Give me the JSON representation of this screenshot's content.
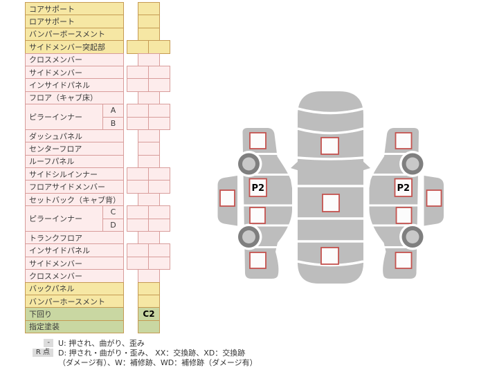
{
  "parts_table": {
    "rows": [
      {
        "label": "コアサポート",
        "theme": "yellow",
        "cells": "single"
      },
      {
        "label": "ロアサポート",
        "theme": "yellow",
        "cells": "single"
      },
      {
        "label": "バンパーボースメント",
        "theme": "yellow",
        "cells": "single"
      },
      {
        "label": "サイドメンバー突起部",
        "theme": "yellow",
        "cells": "double"
      },
      {
        "label": "クロスメンバー",
        "theme": "pink",
        "cells": "single"
      },
      {
        "label": "サイドメンバー",
        "theme": "pink",
        "cells": "double"
      },
      {
        "label": "インサイドパネル",
        "theme": "pink",
        "cells": "double"
      },
      {
        "label": "フロア（キャブ床）",
        "theme": "pink",
        "cells": "single"
      },
      {
        "label": "ピラーインナー",
        "theme": "pink",
        "cells": "double",
        "subs": [
          "A",
          "B"
        ]
      },
      {
        "label": "ダッシュパネル",
        "theme": "pink",
        "cells": "single"
      },
      {
        "label": "センターフロア",
        "theme": "pink",
        "cells": "single"
      },
      {
        "label": "ルーフパネル",
        "theme": "pink",
        "cells": "single"
      },
      {
        "label": "サイドシルインナー",
        "theme": "pink",
        "cells": "double"
      },
      {
        "label": "フロアサイドメンバー",
        "theme": "pink",
        "cells": "double"
      },
      {
        "label": "セットバック（キャブ背）",
        "theme": "pink",
        "cells": "single"
      },
      {
        "label": "ピラーインナー",
        "theme": "pink",
        "cells": "double",
        "subs": [
          "C",
          "D"
        ]
      },
      {
        "label": "トランクフロア",
        "theme": "pink",
        "cells": "single"
      },
      {
        "label": "インサイドパネル",
        "theme": "pink",
        "cells": "double"
      },
      {
        "label": "サイドメンバー",
        "theme": "pink",
        "cells": "double"
      },
      {
        "label": "クロスメンバー",
        "theme": "pink",
        "cells": "single"
      },
      {
        "label": "バックパネル",
        "theme": "yellow",
        "cells": "single"
      },
      {
        "label": "バンパーホースメント",
        "theme": "yellow",
        "cells": "single"
      },
      {
        "label": "下回り",
        "theme": "green",
        "cells": "single",
        "value": "C2"
      },
      {
        "label": "指定塗装",
        "theme": "green",
        "cells": "single"
      }
    ]
  },
  "legend": {
    "items": [
      {
        "key": "-",
        "text": "U: 押され、曲がり、歪み"
      },
      {
        "key": "R 点",
        "text": "D: 押され・曲がり・歪み、 XX：交換跡、XD：交換跡"
      },
      {
        "key": "",
        "text": "（ダメージ有）、W：補修跡、WD：補修跡（ダメージ有）"
      }
    ]
  },
  "diagram": {
    "left_side_marker": "P2",
    "right_side_marker": "P2"
  },
  "colors": {
    "yellow_bg": "#f6e7a4",
    "yellow_border": "#c59a52",
    "pink_bg": "#fdecec",
    "pink_border": "#d89c9a",
    "green_bg": "#c9d7a2",
    "green_border": "#c59a52",
    "car_gray": "#bdbdbd",
    "wheel_ring": "#7f7f7f",
    "wheel_hub": "#c9c9c9",
    "marker_border": "#c4524e",
    "marker_fill": "#fcfcfc",
    "key_box_bg": "#dcdcdc",
    "text_color": "#3a3a3a"
  }
}
